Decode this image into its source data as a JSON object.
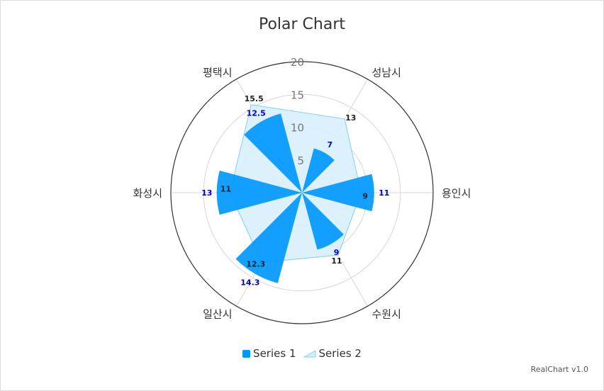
{
  "chart_data": {
    "type": "polar",
    "title": "Polar Chart",
    "categories": [
      "용인시",
      "수원시",
      "일산시",
      "화성시",
      "평택시",
      "성남시"
    ],
    "rlim": [
      0,
      20
    ],
    "rticks": [
      "5",
      "10",
      "15",
      "20"
    ],
    "series": [
      {
        "name": "Series 1",
        "kind": "bar",
        "color": "#0098ff",
        "values": [
          11,
          9,
          14.3,
          13,
          12.5,
          7
        ],
        "labels": [
          "11",
          "9",
          "14.3",
          "13",
          "12.5",
          "7"
        ],
        "label_color": "#0000cc"
      },
      {
        "name": "Series 2",
        "kind": "area",
        "color": "#7fd0f5",
        "values": [
          9,
          11,
          12.3,
          11,
          15.5,
          13
        ],
        "labels": [
          "9",
          "11",
          "12.3",
          "11",
          "15.5",
          "13"
        ],
        "label_color": "#222222"
      }
    ],
    "legend_position": "bottom",
    "grid": true
  },
  "credits": "RealChart v1.0"
}
